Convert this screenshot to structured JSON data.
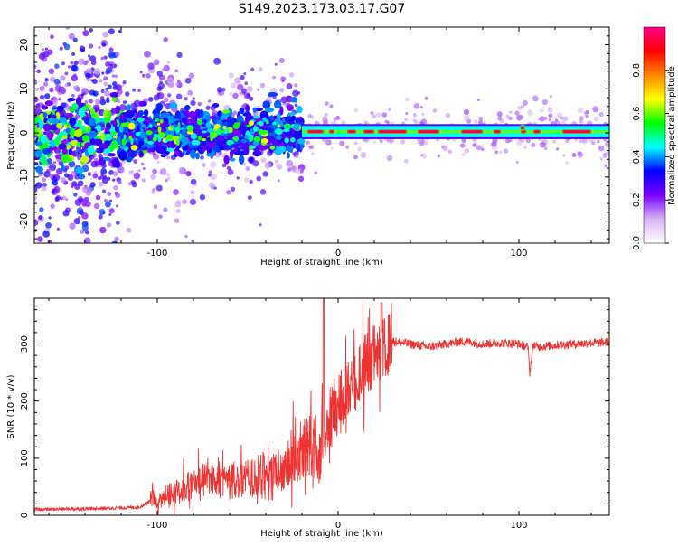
{
  "title": "S149.2023.173.03.17.G07",
  "chart_data": [
    {
      "type": "heatmap",
      "xlabel": "Height of straight line (km)",
      "ylabel": "Frequency (Hz)",
      "xlim": [
        -168,
        150
      ],
      "ylim": [
        -25,
        24
      ],
      "x_ticks": [
        -100,
        0,
        100
      ],
      "x_tick_labels": [
        "-100",
        "0",
        "100"
      ],
      "y_ticks": [
        -20,
        -10,
        0,
        10,
        20
      ],
      "y_tick_labels": [
        "-20",
        "-10",
        "0",
        "10",
        "20"
      ],
      "grid": false,
      "colorbar": {
        "label": "Normalized spectral amplitude",
        "range": [
          0,
          1
        ],
        "ticks": [
          0.0,
          0.2,
          0.4,
          0.6,
          0.8
        ],
        "tick_labels": [
          "0.0",
          "0.2",
          "0.4",
          "0.6",
          "0.8"
        ],
        "colors": [
          "#ffffff",
          "#d8b4f4",
          "#7a00ff",
          "#0000ff",
          "#00ffff",
          "#00ff00",
          "#ffff00",
          "#ff8800",
          "#ff0000",
          "#ff0088"
        ]
      },
      "regions": [
        {
          "x": [
            -168,
            -120
          ],
          "freq_spread": 22,
          "density": "scattered",
          "core_amplitude": 0.45
        },
        {
          "x": [
            -120,
            -20
          ],
          "freq_spread": 6,
          "density": "dense",
          "core_amplitude": 0.6
        },
        {
          "x": [
            -20,
            150
          ],
          "freq_spread": 1.5,
          "density": "narrow line near 0 Hz",
          "core_amplitude": 0.95
        }
      ]
    },
    {
      "type": "line",
      "xlabel": "Height of straight line (km)",
      "ylabel": "SNR (10 * v/v)",
      "xlim": [
        -168,
        150
      ],
      "ylim": [
        0,
        380
      ],
      "x_ticks": [
        -100,
        0,
        100
      ],
      "x_tick_labels": [
        "-100",
        "0",
        "100"
      ],
      "y_ticks": [
        0,
        100,
        200,
        300
      ],
      "y_tick_labels": [
        "0",
        "100",
        "200",
        "300"
      ],
      "grid": false,
      "color": "#ee3333",
      "series": [
        {
          "x": [
            -168,
            -150,
            -130,
            -110,
            -104,
            -100,
            -90,
            -80,
            -70,
            -60,
            -50,
            -40,
            -30,
            -25,
            -20,
            -15,
            -10,
            -8,
            -5,
            0,
            5,
            10,
            15,
            20,
            25,
            30,
            40,
            50,
            60,
            70,
            80,
            90,
            100,
            105,
            106,
            108,
            110,
            120,
            130,
            140,
            150
          ],
          "y": [
            10,
            11,
            12,
            14,
            25,
            30,
            40,
            55,
            65,
            60,
            60,
            75,
            80,
            95,
            110,
            125,
            100,
            140,
            170,
            195,
            215,
            240,
            265,
            280,
            290,
            305,
            300,
            295,
            300,
            305,
            300,
            302,
            300,
            295,
            250,
            300,
            295,
            298,
            300,
            302,
            303
          ]
        }
      ]
    }
  ]
}
